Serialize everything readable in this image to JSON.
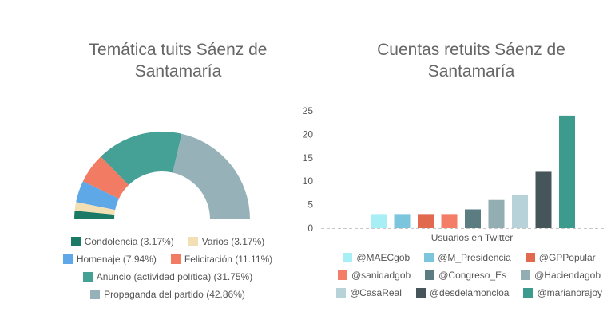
{
  "chart_data": [
    {
      "type": "pie",
      "title": "Temática tuits Sáenz de\nSantamaría",
      "slices": [
        {
          "label": "Condolencia",
          "value": 3.17,
          "legend": "Condolencia (3.17%)",
          "color": "#1b7a66"
        },
        {
          "label": "Varios",
          "value": 3.17,
          "legend": "Varios (3.17%)",
          "color": "#f2dfb4"
        },
        {
          "label": "Homenaje",
          "value": 7.94,
          "legend": "Homenaje (7.94%)",
          "color": "#5fa8e8"
        },
        {
          "label": "Felicitación",
          "value": 11.11,
          "legend": "Felicitación (11.11%)",
          "color": "#f27c63"
        },
        {
          "label": "Anuncio (actividad política)",
          "value": 31.75,
          "legend": "Anuncio (actividad política) (31.75%)",
          "color": "#45a095"
        },
        {
          "label": "Propaganda del partido",
          "value": 42.86,
          "legend": "Propaganda del partido (42.86%)",
          "color": "#96b2b8"
        }
      ],
      "legend_rows": [
        [
          0,
          1
        ],
        [
          2,
          3
        ],
        [
          4
        ],
        [
          5
        ]
      ]
    },
    {
      "type": "bar",
      "title": "Cuentas retuits Sáenz de\nSantamaría",
      "xlabel": "Usuarios en Twitter",
      "ylim": [
        0,
        25
      ],
      "yticks": [
        "0",
        "5",
        "10",
        "15",
        "20",
        "25"
      ],
      "grid": false,
      "categories": [
        "@MAECgob",
        "@M_Presidencia",
        "@GPPopular",
        "@sanidadgob",
        "@Congreso_Es",
        "@Haciendagob",
        "@CasaReal",
        "@desdelamoncloa",
        "@marianorajoy"
      ],
      "values": [
        3,
        3,
        3,
        3,
        4,
        6,
        7,
        12,
        24
      ],
      "colors": [
        "#a8eef5",
        "#7cc6dd",
        "#e0694e",
        "#f47d67",
        "#5b7d82",
        "#93aeb3",
        "#b7d3d9",
        "#455559",
        "#3d9b8e"
      ],
      "legend_rows": [
        [
          0,
          1,
          2
        ],
        [
          3,
          4,
          5
        ],
        [
          6,
          7,
          8
        ]
      ]
    }
  ]
}
